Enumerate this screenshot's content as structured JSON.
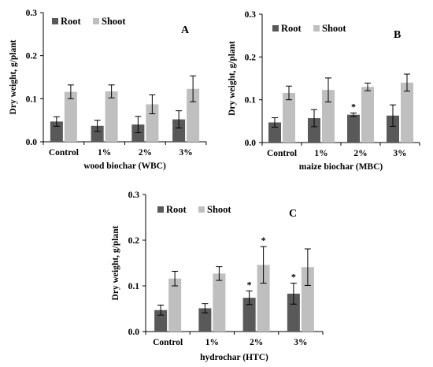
{
  "colors": {
    "root": "#595959",
    "shoot": "#bfbfbf",
    "axis": "#000000"
  },
  "chart_data": [
    {
      "type": "bar",
      "panel_label": "A",
      "categories": [
        "Control",
        "1%",
        "2%",
        "3%"
      ],
      "series": [
        {
          "name": "Root",
          "values": [
            0.047,
            0.037,
            0.04,
            0.052
          ],
          "errors": [
            0.011,
            0.013,
            0.019,
            0.02
          ]
        },
        {
          "name": "Shoot",
          "values": [
            0.116,
            0.117,
            0.087,
            0.123
          ],
          "errors": [
            0.016,
            0.015,
            0.022,
            0.03
          ]
        }
      ],
      "significance": [
        [
          false,
          false,
          false,
          false
        ],
        [
          false,
          false,
          false,
          false
        ]
      ],
      "xlabel": "wood biochar (WBC)",
      "ylabel": "Dry weight, g/plant",
      "ylim": [
        0,
        0.3
      ],
      "yticks": [
        "0.0",
        "0.1",
        "0.2",
        "0.3"
      ],
      "legend": "top-left",
      "grid": false
    },
    {
      "type": "bar",
      "panel_label": "B",
      "categories": [
        "Control",
        "1%",
        "2%",
        "3%"
      ],
      "series": [
        {
          "name": "Root",
          "values": [
            0.047,
            0.057,
            0.065,
            0.063
          ],
          "errors": [
            0.011,
            0.02,
            0.004,
            0.025
          ]
        },
        {
          "name": "Shoot",
          "values": [
            0.116,
            0.123,
            0.13,
            0.14
          ],
          "errors": [
            0.016,
            0.028,
            0.009,
            0.02
          ]
        }
      ],
      "significance": [
        [
          false,
          false,
          true,
          false
        ],
        [
          false,
          false,
          false,
          false
        ]
      ],
      "xlabel": "maize biochar (MBC)",
      "ylabel": "Dry weight, g/plant",
      "ylim": [
        0,
        0.3
      ],
      "yticks": [
        "0.0",
        "0.1",
        "0.2",
        "0.3"
      ],
      "legend": "top-left",
      "grid": false
    },
    {
      "type": "bar",
      "panel_label": "C",
      "categories": [
        "Control",
        "1%",
        "2%",
        "3%"
      ],
      "series": [
        {
          "name": "Root",
          "values": [
            0.047,
            0.051,
            0.074,
            0.083
          ],
          "errors": [
            0.011,
            0.01,
            0.015,
            0.023
          ]
        },
        {
          "name": "Shoot",
          "values": [
            0.116,
            0.127,
            0.146,
            0.141
          ],
          "errors": [
            0.016,
            0.015,
            0.04,
            0.04
          ]
        }
      ],
      "significance": [
        [
          false,
          false,
          true,
          true
        ],
        [
          false,
          false,
          true,
          false
        ]
      ],
      "xlabel": "hydrochar (HTC)",
      "ylabel": "Dry weight, g/plant",
      "ylim": [
        0,
        0.3
      ],
      "yticks": [
        "0.0",
        "0.1",
        "0.2",
        "0.3"
      ],
      "legend": "top-left",
      "grid": false
    }
  ]
}
